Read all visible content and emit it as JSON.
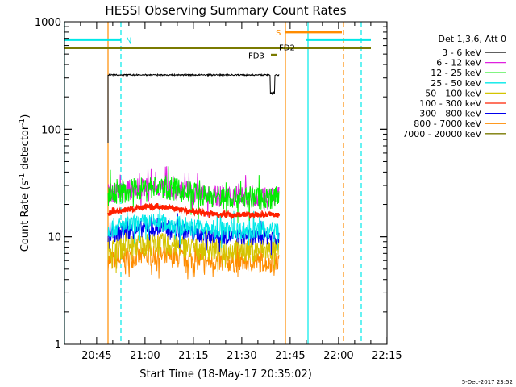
{
  "chart_data": {
    "type": "line",
    "title": "HESSI Observing Summary Count Rates",
    "xlabel": "Start Time (18-May-17 20:35:02)",
    "ylabel_main": "Count Rate (s",
    "ylabel_sup1": "-1",
    "ylabel_mid": " detector",
    "ylabel_sup2": "-1",
    "ylabel_end": ")",
    "x_axis": {
      "unit": "minutes after 20:35:02",
      "range": [
        0,
        100
      ],
      "ticks": [
        {
          "label": "20:45",
          "value": 9.97
        },
        {
          "label": "21:00",
          "value": 24.97
        },
        {
          "label": "21:15",
          "value": 39.97
        },
        {
          "label": "21:30",
          "value": 54.97
        },
        {
          "label": "21:45",
          "value": 69.97
        },
        {
          "label": "22:00",
          "value": 84.97
        },
        {
          "label": "22:15",
          "value": 99.97
        }
      ]
    },
    "y_axis": {
      "scale": "log",
      "range": [
        1,
        1000
      ],
      "ticks": [
        {
          "label": "1",
          "value": 1
        },
        {
          "label": "10",
          "value": 10
        },
        {
          "label": "100",
          "value": 100
        },
        {
          "label": "1000",
          "value": 1000
        }
      ]
    },
    "legend": {
      "placement": "top-right",
      "header": "Det 1,3,6, Att 0",
      "entries": [
        {
          "label": "3 - 6 keV",
          "color": "#000000"
        },
        {
          "label": "6 - 12 keV",
          "color": "#e020e0"
        },
        {
          "label": "12 - 25 keV",
          "color": "#00ee00"
        },
        {
          "label": "25 - 50 keV",
          "color": "#00e8e8"
        },
        {
          "label": "50 - 100 keV",
          "color": "#d4c400"
        },
        {
          "label": "100 - 300 keV",
          "color": "#ff2000"
        },
        {
          "label": "300 - 800 keV",
          "color": "#0000ee"
        },
        {
          "label": "800 - 7000 keV",
          "color": "#ff8c00"
        },
        {
          "label": "7000 - 20000 keV",
          "color": "#7a7a00"
        }
      ]
    },
    "series": [
      {
        "label": "3 - 6 keV",
        "color": "#000000",
        "start": 13.5,
        "end": 66.5,
        "level": 320,
        "spread": 0.03,
        "dip_start": 63.8,
        "dip_end": 65.2,
        "dip_level": 210,
        "lead_in_from": 75
      },
      {
        "label": "6 - 12 keV",
        "color": "#e020e0",
        "start": 13.5,
        "end": 66.5,
        "level": 24,
        "spread": 0.22,
        "hump": 5
      },
      {
        "label": "12 - 25 keV",
        "color": "#00ee00",
        "start": 13.5,
        "end": 66.5,
        "level": 23,
        "spread": 0.25,
        "hump": 6
      },
      {
        "label": "25 - 50 keV",
        "color": "#00e8e8",
        "start": 13.5,
        "end": 66.5,
        "level": 11.5,
        "spread": 0.2,
        "hump": 2
      },
      {
        "label": "50 - 100 keV",
        "color": "#d4c400",
        "start": 13.5,
        "end": 66.5,
        "level": 7.5,
        "spread": 0.25,
        "hump": 1
      },
      {
        "label": "100 - 300 keV",
        "color": "#ff2000",
        "start": 13.5,
        "end": 66.5,
        "level": 16,
        "spread": 0.05,
        "hump": 3
      },
      {
        "label": "300 - 800 keV",
        "color": "#0000ee",
        "start": 13.5,
        "end": 66.5,
        "level": 10,
        "spread": 0.18,
        "hump": 2
      },
      {
        "label": "800 - 7000 keV",
        "color": "#ff8c00",
        "start": 13.5,
        "end": 66.5,
        "level": 5.8,
        "spread": 0.22,
        "hump": 0.8
      }
    ],
    "flags": [
      {
        "label": "N",
        "color": "#00e8e8",
        "y_value": 680,
        "segments": [
          [
            0,
            17.5
          ],
          [
            75,
            95
          ]
        ]
      },
      {
        "label": "S",
        "color": "#ff8c00",
        "y_value": 800,
        "segments": [
          [
            68.5,
            86
          ]
        ]
      },
      {
        "label": "FD2",
        "color": "#7a7a00",
        "y_value": 570,
        "segments": [
          [
            0,
            95
          ]
        ]
      },
      {
        "label": "FD3",
        "color": "#7a7a00",
        "y_value": 490,
        "segments": [
          [
            64,
            66
          ]
        ]
      }
    ],
    "vertical_lines": [
      {
        "x": 0,
        "color": "#00e8e8",
        "style": "solid"
      },
      {
        "x": 13.5,
        "color": "#ff8c00",
        "style": "solid"
      },
      {
        "x": 17.5,
        "color": "#00e8e8",
        "style": "dashed"
      },
      {
        "x": 68.5,
        "color": "#ff8c00",
        "style": "solid"
      },
      {
        "x": 75.5,
        "color": "#00e8e8",
        "style": "solid"
      },
      {
        "x": 86.5,
        "color": "#ff8c00",
        "style": "dashed"
      },
      {
        "x": 92,
        "color": "#00e8e8",
        "style": "dashed"
      }
    ]
  },
  "footer": {
    "timestamp": "5-Dec-2017 23:52"
  }
}
